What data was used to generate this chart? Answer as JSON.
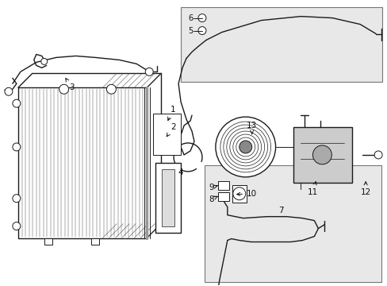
{
  "bg_color": "#ffffff",
  "line_color": "#1a1a1a",
  "box_fill": "#e8e8e8",
  "label_color": "#111111",
  "figsize": [
    4.89,
    3.6
  ],
  "dpi": 100
}
